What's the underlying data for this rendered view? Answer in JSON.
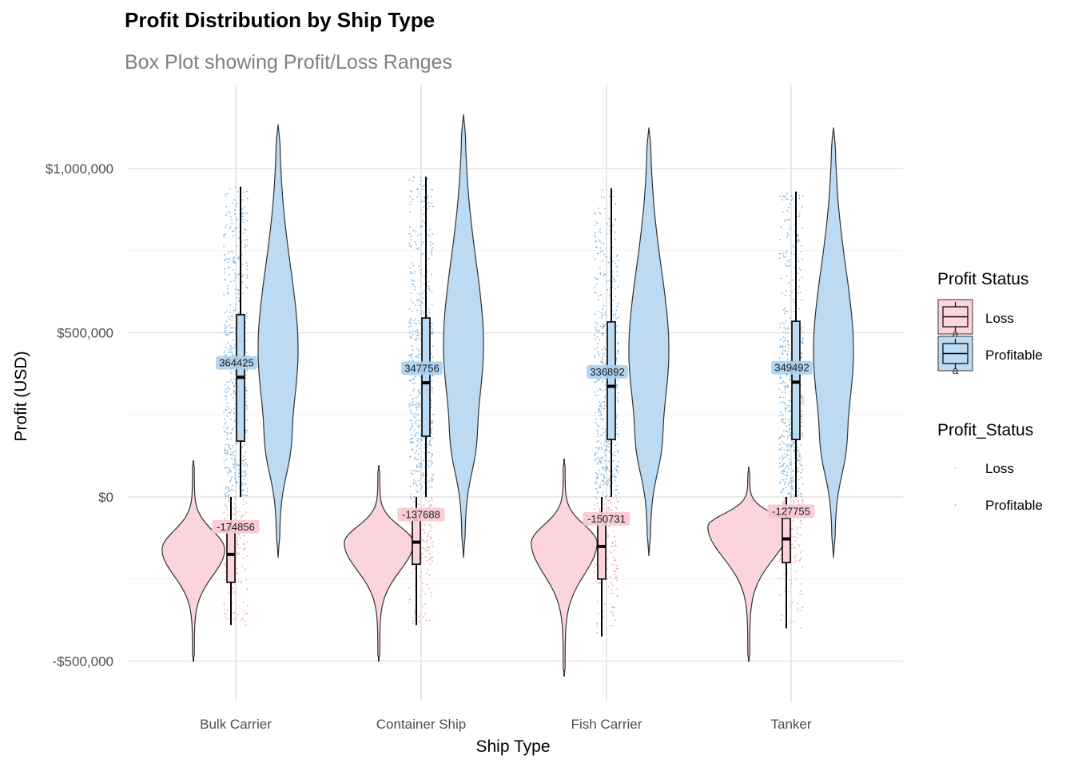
{
  "chart_data": {
    "type": "violin+box+jitter",
    "title": "Profit Distribution by Ship Type",
    "subtitle": "Box Plot showing Profit/Loss Ranges",
    "xlabel": "Ship Type",
    "ylabel": "Profit (USD)",
    "categories": [
      "Bulk Carrier",
      "Container Ship",
      "Fish Carrier",
      "Tanker"
    ],
    "ylim": [
      -610000,
      1250000
    ],
    "yticks": [
      -500000,
      0,
      500000,
      1000000
    ],
    "ytick_labels": [
      "-$500,000",
      "$0",
      "$500,000",
      "$1,000,000"
    ],
    "grid": true,
    "colors": {
      "loss_fill": "#fcd5dc",
      "profit_fill": "#bcdaf2",
      "loss_point": "#e89aa6",
      "profit_point": "#6aa9d8",
      "outline": "#333333"
    },
    "series": [
      {
        "name": "Loss",
        "box": [
          {
            "category": "Bulk Carrier",
            "min": -390000,
            "q1": -260000,
            "median": -174856,
            "q3": -100000,
            "max": 0
          },
          {
            "category": "Container Ship",
            "min": -390000,
            "q1": -205000,
            "median": -137688,
            "q3": -72000,
            "max": 0
          },
          {
            "category": "Fish Carrier",
            "min": -425000,
            "q1": -250000,
            "median": -150731,
            "q3": -65000,
            "max": 0
          },
          {
            "category": "Tanker",
            "min": -400000,
            "q1": -200000,
            "median": -127755,
            "q3": -65000,
            "max": 0
          }
        ],
        "median_labels": [
          "-174856",
          "-137688",
          "-150731",
          "-127755"
        ],
        "violin": [
          {
            "category": "Bulk Carrier",
            "min": -500000,
            "max": 110000,
            "peak": -160000
          },
          {
            "category": "Container Ship",
            "min": -500000,
            "max": 95000,
            "peak": -140000
          },
          {
            "category": "Fish Carrier",
            "min": -545000,
            "max": 115000,
            "peak": -140000
          },
          {
            "category": "Tanker",
            "min": -500000,
            "max": 90000,
            "peak": -90000
          }
        ]
      },
      {
        "name": "Profitable",
        "box": [
          {
            "category": "Bulk Carrier",
            "min": 0,
            "q1": 170000,
            "median": 364425,
            "q3": 555000,
            "max": 945000
          },
          {
            "category": "Container Ship",
            "min": 0,
            "q1": 185000,
            "median": 347756,
            "q3": 545000,
            "max": 975000
          },
          {
            "category": "Fish Carrier",
            "min": 0,
            "q1": 175000,
            "median": 336892,
            "q3": 533000,
            "max": 940000
          },
          {
            "category": "Tanker",
            "min": 0,
            "q1": 175000,
            "median": 349492,
            "q3": 535000,
            "max": 930000
          }
        ],
        "median_labels": [
          "364425",
          "347756",
          "336892",
          "349492"
        ],
        "violin": [
          {
            "category": "Bulk Carrier",
            "min": -185000,
            "max": 1135000
          },
          {
            "category": "Container Ship",
            "min": -185000,
            "max": 1165000
          },
          {
            "category": "Fish Carrier",
            "min": -180000,
            "max": 1125000
          },
          {
            "category": "Tanker",
            "min": -185000,
            "max": 1125000
          }
        ]
      }
    ],
    "legends": [
      {
        "title": "Profit Status",
        "entries": [
          "Loss",
          "Profitable"
        ],
        "glyph": "box",
        "glyph_text": "a"
      },
      {
        "title": "Profit_Status",
        "entries": [
          "Loss",
          "Profitable"
        ],
        "glyph": "point"
      }
    ],
    "legend_position": "right"
  }
}
